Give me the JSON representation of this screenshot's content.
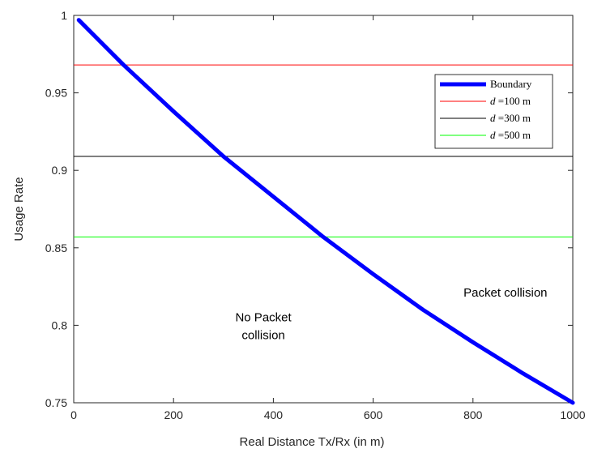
{
  "chart_data": {
    "type": "line",
    "xlabel": "Real Distance Tx/Rx (in m)",
    "ylabel": "Usage Rate",
    "xlim": [
      0,
      1000
    ],
    "ylim": [
      0.75,
      1
    ],
    "xticks": [
      0,
      200,
      400,
      600,
      800,
      1000
    ],
    "yticks": [
      0.75,
      0.8,
      0.85,
      0.9,
      0.95,
      1
    ],
    "xtick_labels": [
      "0",
      "200",
      "400",
      "600",
      "800",
      "1000"
    ],
    "ytick_labels": [
      "0.75",
      "0.8",
      "0.85",
      "0.9",
      "0.95",
      "1"
    ],
    "grid": false,
    "legend_position": "top-right",
    "series": [
      {
        "name": "Boundary",
        "color": "#0000ff",
        "style": "thick-line",
        "x": [
          10,
          100,
          200,
          300,
          400,
          500,
          600,
          700,
          800,
          900,
          1000
        ],
        "y": [
          0.997,
          0.968,
          0.938,
          0.909,
          0.883,
          0.857,
          0.833,
          0.81,
          0.789,
          0.769,
          0.75
        ]
      },
      {
        "name_prefix": "d",
        "name_suffix": " =100 m",
        "color": "#ff0000",
        "style": "hline",
        "y": 0.968
      },
      {
        "name_prefix": "d",
        "name_suffix": " =300 m",
        "color": "#000000",
        "style": "hline",
        "y": 0.909
      },
      {
        "name_prefix": "d",
        "name_suffix": " =500 m",
        "color": "#00ff00",
        "style": "hline",
        "y": 0.857
      }
    ],
    "annotations": [
      {
        "lines": [
          "Packet collision"
        ],
        "x": 865,
        "y": 0.8185
      },
      {
        "lines": [
          "No Packet",
          "collision"
        ],
        "x": 380,
        "y": 0.8025
      }
    ]
  }
}
